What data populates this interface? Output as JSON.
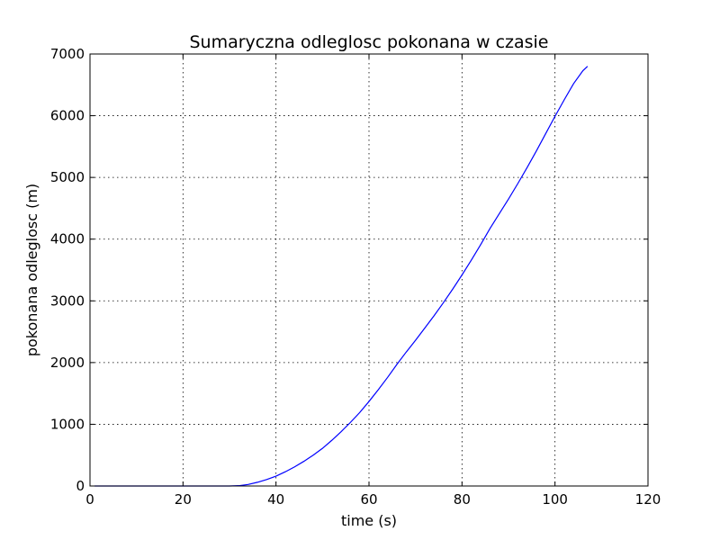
{
  "chart_data": {
    "type": "line",
    "title": "Sumaryczna odleglosc pokonana w czasie",
    "xlabel": "time (s)",
    "ylabel": "pokonana odleglosc (m)",
    "xlim": [
      0,
      120
    ],
    "ylim": [
      0,
      7000
    ],
    "xticks": [
      0,
      20,
      40,
      60,
      80,
      100,
      120
    ],
    "yticks": [
      0,
      1000,
      2000,
      3000,
      4000,
      5000,
      6000,
      7000
    ],
    "grid": true,
    "series": [
      {
        "color": "#0000ff",
        "x": [
          1,
          10,
          20,
          30,
          32,
          34,
          36,
          38,
          40,
          42,
          44,
          46,
          48,
          50,
          52,
          54,
          56,
          58,
          60,
          62,
          64,
          66,
          68,
          70,
          72,
          74,
          76,
          78,
          80,
          82,
          84,
          86,
          88,
          90,
          92,
          94,
          96,
          98,
          100,
          102,
          104,
          106,
          107
        ],
        "y": [
          0,
          0,
          0,
          0,
          5,
          25,
          60,
          105,
          160,
          230,
          310,
          400,
          500,
          610,
          740,
          880,
          1030,
          1190,
          1370,
          1560,
          1760,
          1970,
          2170,
          2360,
          2560,
          2760,
          2970,
          3190,
          3420,
          3660,
          3910,
          4170,
          4410,
          4650,
          4900,
          5160,
          5430,
          5710,
          5990,
          6260,
          6520,
          6730,
          6800
        ]
      }
    ]
  }
}
